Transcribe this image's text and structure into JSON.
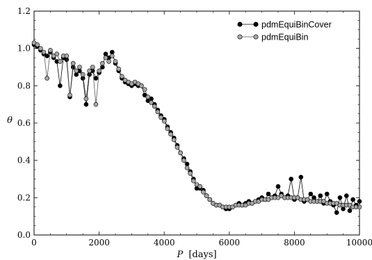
{
  "chart_data": {
    "type": "line",
    "xlabel_var": "P",
    "xlabel_unit": "[days]",
    "ylabel": "θ",
    "xlim": [
      0,
      10000
    ],
    "ylim": [
      0.0,
      1.2
    ],
    "xticks": [
      "0",
      "2000",
      "4000",
      "6000",
      "8000",
      "10000"
    ],
    "yticks": [
      "0.0",
      "0.2",
      "0.4",
      "0.6",
      "0.8",
      "1.0",
      "1.2"
    ],
    "grid": false,
    "legend_position": "top-right",
    "x": [
      0,
      100,
      200,
      300,
      400,
      500,
      600,
      700,
      800,
      900,
      1000,
      1100,
      1200,
      1300,
      1400,
      1500,
      1600,
      1700,
      1800,
      1900,
      2000,
      2100,
      2200,
      2300,
      2400,
      2500,
      2600,
      2700,
      2800,
      2900,
      3000,
      3100,
      3200,
      3300,
      3400,
      3500,
      3600,
      3700,
      3800,
      3900,
      4000,
      4100,
      4200,
      4300,
      4400,
      4500,
      4600,
      4700,
      4800,
      4900,
      5000,
      5100,
      5200,
      5300,
      5400,
      5500,
      5600,
      5700,
      5800,
      5900,
      6000,
      6100,
      6200,
      6300,
      6400,
      6500,
      6600,
      6700,
      6800,
      6900,
      7000,
      7100,
      7200,
      7300,
      7400,
      7500,
      7600,
      7700,
      7800,
      7900,
      8000,
      8100,
      8200,
      8300,
      8400,
      8500,
      8600,
      8700,
      8800,
      8900,
      9000,
      9100,
      9200,
      9300,
      9400,
      9500,
      9600,
      9700,
      9800,
      9900,
      10000
    ],
    "series": [
      {
        "name": "pdmEquiBinCover",
        "color": "#000000",
        "marker_fill": "#000000",
        "values": [
          1.02,
          1.01,
          0.99,
          0.97,
          0.96,
          0.98,
          0.95,
          0.93,
          0.8,
          0.95,
          0.94,
          0.74,
          0.9,
          0.86,
          0.88,
          0.84,
          0.7,
          0.86,
          0.88,
          0.84,
          0.87,
          0.9,
          0.97,
          0.95,
          0.98,
          0.92,
          0.88,
          0.84,
          0.82,
          0.81,
          0.8,
          0.81,
          0.8,
          0.8,
          0.75,
          0.72,
          0.73,
          0.7,
          0.67,
          0.64,
          0.62,
          0.58,
          0.55,
          0.52,
          0.48,
          0.44,
          0.41,
          0.38,
          0.34,
          0.3,
          0.25,
          0.25,
          0.24,
          0.21,
          0.19,
          0.17,
          0.16,
          0.16,
          0.15,
          0.14,
          0.14,
          0.15,
          0.16,
          0.17,
          0.16,
          0.17,
          0.18,
          0.17,
          0.18,
          0.19,
          0.2,
          0.19,
          0.22,
          0.2,
          0.21,
          0.26,
          0.22,
          0.2,
          0.21,
          0.3,
          0.19,
          0.2,
          0.31,
          0.18,
          0.19,
          0.22,
          0.2,
          0.18,
          0.21,
          0.17,
          0.22,
          0.18,
          0.16,
          0.12,
          0.2,
          0.14,
          0.21,
          0.13,
          0.19,
          0.16,
          0.18
        ]
      },
      {
        "name": "pdmEquiBin",
        "color": "#555555",
        "marker_fill": "#a6a6a6",
        "values": [
          1.03,
          1.02,
          1.0,
          0.98,
          0.84,
          0.99,
          0.96,
          0.97,
          0.93,
          0.96,
          0.96,
          0.75,
          0.92,
          0.88,
          0.9,
          0.86,
          0.73,
          0.88,
          0.9,
          0.7,
          0.88,
          0.92,
          0.95,
          0.93,
          0.96,
          0.93,
          0.89,
          0.85,
          0.83,
          0.82,
          0.81,
          0.82,
          0.81,
          0.8,
          0.78,
          0.74,
          0.71,
          0.69,
          0.66,
          0.63,
          0.61,
          0.57,
          0.54,
          0.51,
          0.47,
          0.44,
          0.4,
          0.36,
          0.33,
          0.29,
          0.27,
          0.26,
          0.23,
          0.21,
          0.19,
          0.17,
          0.16,
          0.16,
          0.15,
          0.15,
          0.15,
          0.15,
          0.16,
          0.16,
          0.16,
          0.16,
          0.17,
          0.17,
          0.18,
          0.18,
          0.19,
          0.19,
          0.19,
          0.2,
          0.2,
          0.2,
          0.21,
          0.2,
          0.2,
          0.2,
          0.2,
          0.2,
          0.19,
          0.19,
          0.19,
          0.18,
          0.18,
          0.18,
          0.18,
          0.18,
          0.17,
          0.17,
          0.17,
          0.17,
          0.16,
          0.16,
          0.16,
          0.16,
          0.15,
          0.15,
          0.15
        ]
      }
    ]
  }
}
